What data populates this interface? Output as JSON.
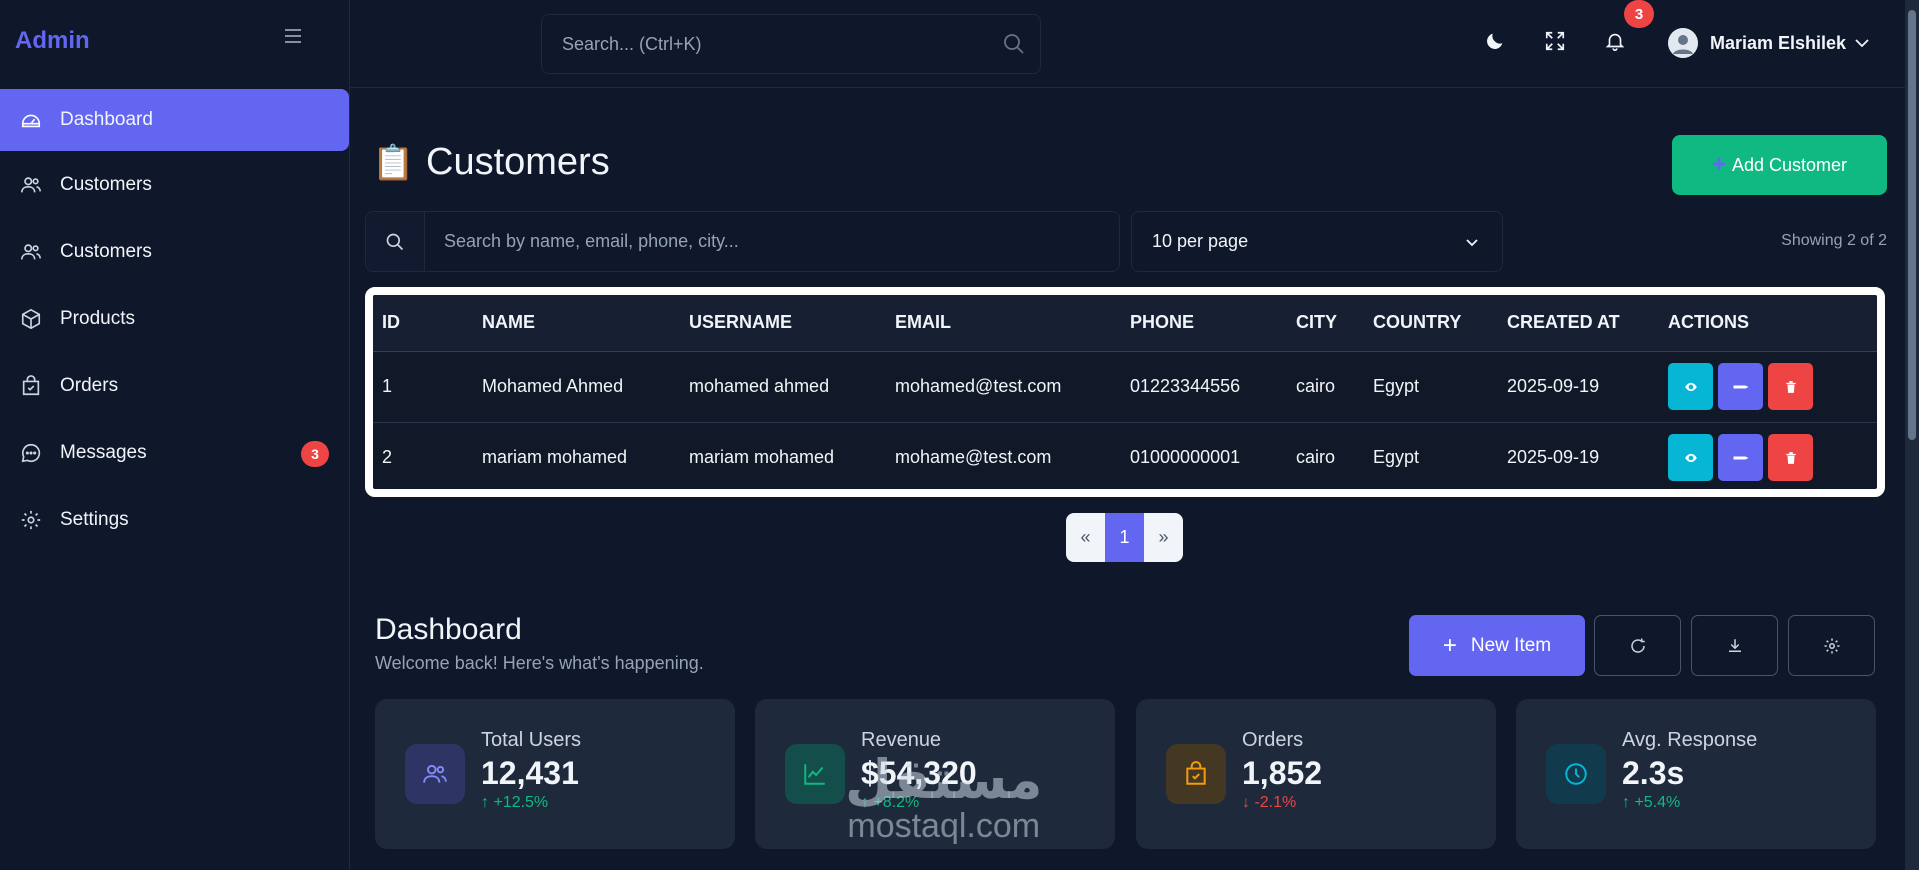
{
  "brand": "Admin",
  "sidebar": {
    "items": [
      {
        "label": "Dashboard",
        "icon": "dashboard-icon"
      },
      {
        "label": "Customers",
        "icon": "users-icon"
      },
      {
        "label": "Customers",
        "icon": "users-icon"
      },
      {
        "label": "Products",
        "icon": "box-icon"
      },
      {
        "label": "Orders",
        "icon": "bag-icon"
      },
      {
        "label": "Messages",
        "icon": "chat-icon",
        "badge": "3"
      },
      {
        "label": "Settings",
        "icon": "gear-icon"
      }
    ]
  },
  "topbar": {
    "search_placeholder": "Search... (Ctrl+K)",
    "notification_count": "3",
    "user_name": "Mariam Elshilek"
  },
  "customers": {
    "title": "Customers",
    "add_button": "Add Customer",
    "search_placeholder": "Search by name, email, phone, city...",
    "per_page": "10 per page",
    "showing": "Showing 2 of 2",
    "columns": [
      "ID",
      "NAME",
      "USERNAME",
      "EMAIL",
      "PHONE",
      "CITY",
      "COUNTRY",
      "CREATED AT",
      "ACTIONS"
    ],
    "rows": [
      {
        "id": "1",
        "name": "Mohamed Ahmed",
        "username": "mohamed ahmed",
        "email": "mohamed@test.com",
        "phone": "01223344556",
        "city": "cairo",
        "country": "Egypt",
        "created": "2025-09-19"
      },
      {
        "id": "2",
        "name": "mariam mohamed",
        "username": "mariam mohamed",
        "email": "mohame@test.com",
        "phone": "01000000001",
        "city": "cairo",
        "country": "Egypt",
        "created": "2025-09-19"
      }
    ],
    "pager": {
      "prev": "«",
      "current": "1",
      "next": "»"
    }
  },
  "dashboard": {
    "title": "Dashboard",
    "subtitle": "Welcome back! Here's what's happening.",
    "new_item": "New Item",
    "cards": [
      {
        "label": "Total Users",
        "value": "12,431",
        "change": "↑ +12.5%"
      },
      {
        "label": "Revenue",
        "value": "$54,320",
        "change": "↑ +8.2%"
      },
      {
        "label": "Orders",
        "value": "1,852",
        "change": "↓ -2.1%"
      },
      {
        "label": "Avg. Response",
        "value": "2.3s",
        "change": "↑ +5.4%"
      }
    ]
  },
  "watermark": {
    "arabic": "مستقل",
    "latin": "mostaql.com"
  },
  "colors": {
    "accent": "#6366f1",
    "success": "#10b981",
    "danger": "#ef4444",
    "info": "#06b6d4",
    "background": "#0f172a",
    "card": "#1e293b"
  }
}
